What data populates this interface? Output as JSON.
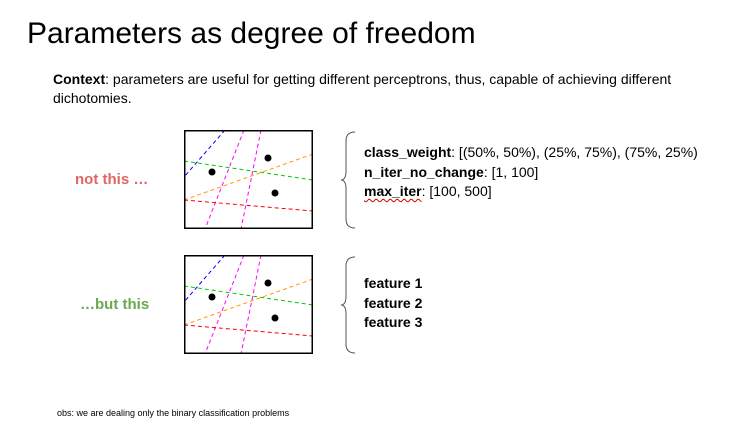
{
  "slide": {
    "title": "Parameters as degree of freedom",
    "context_label": "Context",
    "context_text": ": parameters are useful for getting different perceptrons, thus, capable of achieving different dichotomies.",
    "label_bad": "not this …",
    "label_good": "…but this",
    "params": [
      {
        "name": "class_weight",
        "values": ": [(50%, 50%), (25%, 75%), (75%, 25%)"
      },
      {
        "name": "n_iter_no_change",
        "values": ": [1, 100]"
      },
      {
        "name": "max_iter",
        "values": ": [100, 500]"
      }
    ],
    "features": [
      "feature 1",
      "feature 2",
      "feature 3"
    ],
    "footnote": "obs: we are dealing only the binary classification problems"
  },
  "colors": {
    "bad": "#e06666",
    "good": "#6aa84f",
    "lines": [
      "#0000ff",
      "#ff00ff",
      "#ff00ff",
      "#00cc00",
      "#ff9900",
      "#ff0000"
    ]
  }
}
